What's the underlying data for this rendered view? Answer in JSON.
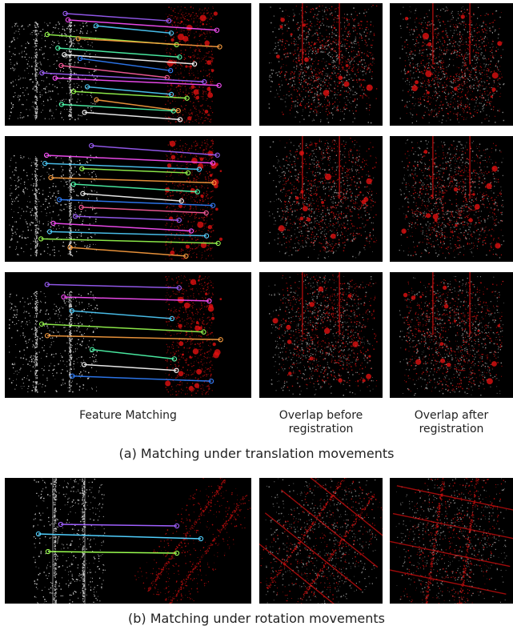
{
  "column_captions": {
    "feature_matching": "Feature Matching",
    "overlap_before": "Overlap before registration",
    "overlap_after": "Overlap after registration"
  },
  "subfigure_a": "(a) Matching under translation movements",
  "subfigure_b": "(b) Matching under rotation movements",
  "colors": {
    "background": "#000000",
    "source_cloud": "#e8e8e8",
    "target_cloud": "#e01010",
    "match_lines": [
      "#a060ff",
      "#ff50ff",
      "#50d0ff",
      "#9aff50",
      "#ffa040",
      "#50ffb0",
      "#ffffff",
      "#3080ff",
      "#ff60a0"
    ]
  },
  "rows": [
    {
      "id": "translation-1",
      "matches": 16
    },
    {
      "id": "translation-2",
      "matches": 14
    },
    {
      "id": "translation-3",
      "matches": 8
    },
    {
      "id": "rotation-1",
      "matches": 3
    }
  ]
}
